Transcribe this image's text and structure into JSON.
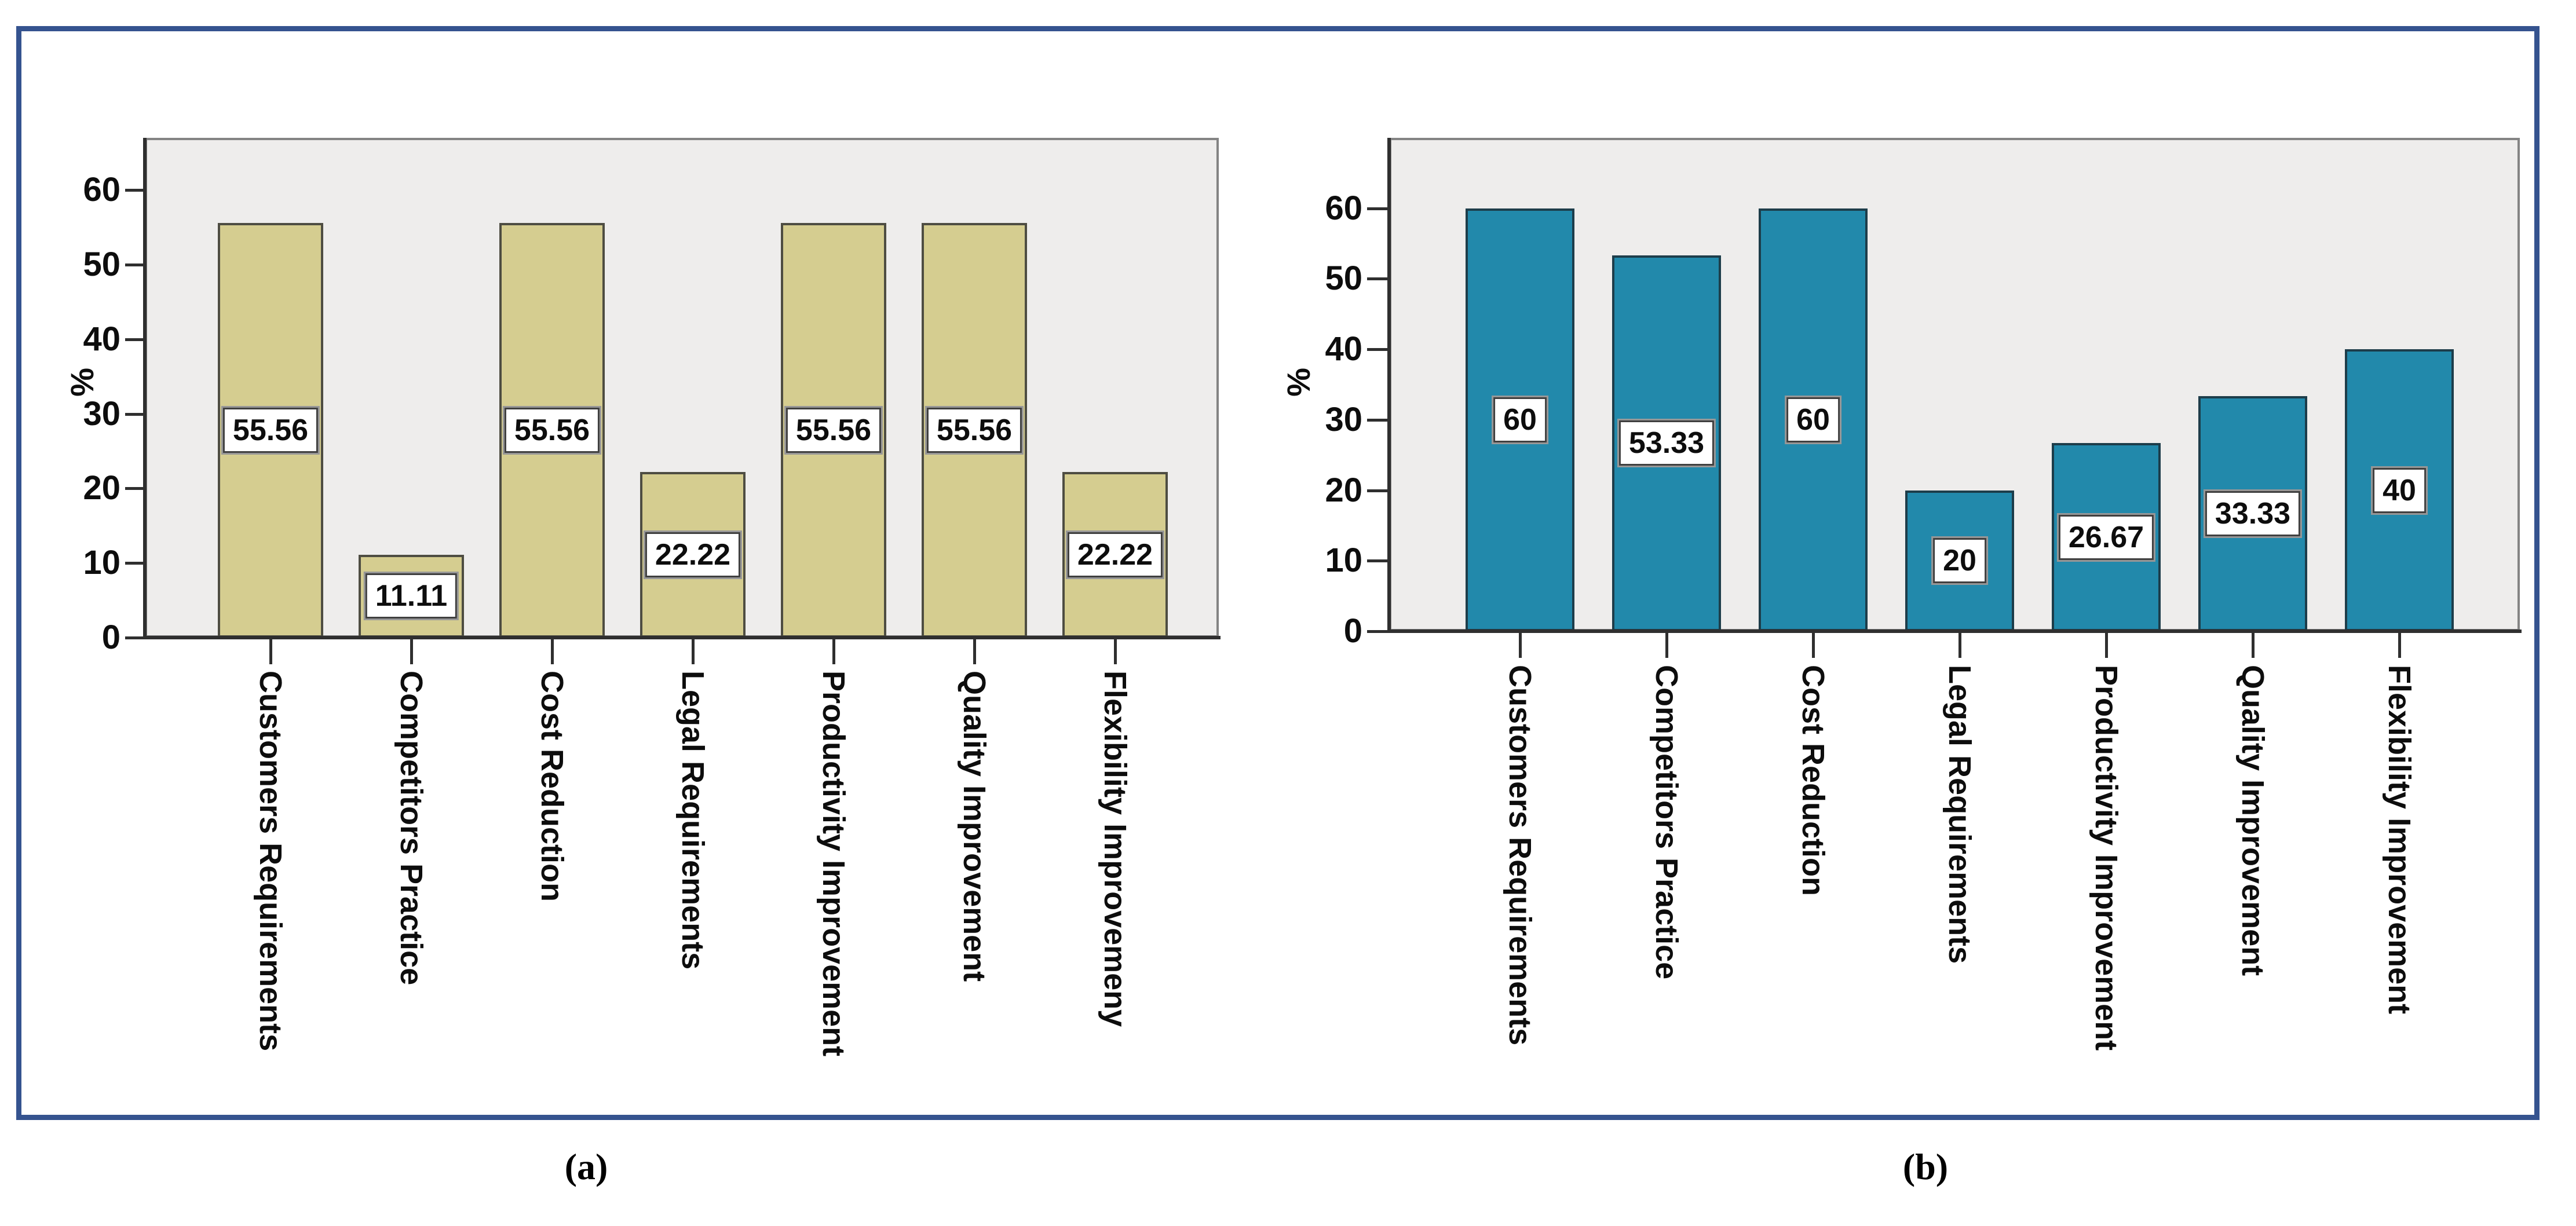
{
  "figure": {
    "captions": {
      "a": "(a)",
      "b": "(b)"
    }
  },
  "colors": {
    "border_blue": "#35538f",
    "plot_bg": "#eeedec",
    "plot_frame": "#848484",
    "axis": "#2f2f2f",
    "chart_a_bar": "#d5cd90",
    "chart_a_bar_border": "#4e4d42",
    "chart_b_bar": "#2289ab",
    "chart_b_bar_border": "#1d3d4a"
  },
  "chart_data": [
    {
      "type": "bar",
      "panel": "a",
      "title": "",
      "xlabel": "",
      "ylabel": "%",
      "categories": [
        "Customers Requirements",
        "Competitors Practice",
        "Cost Reduction",
        "Legal Requirements",
        "Productivity Improvement",
        "Quality Improvement",
        "Flexibility Improvemeny"
      ],
      "values": [
        55.56,
        11.11,
        55.56,
        22.22,
        55.56,
        55.56,
        22.22
      ],
      "bar_labels": [
        "55.56",
        "11.11",
        "55.56",
        "22.22",
        "55.56",
        "55.56",
        "22.22"
      ],
      "yticks": [
        0,
        10,
        20,
        30,
        40,
        50,
        60
      ],
      "ylim": [
        0,
        67
      ],
      "grid": false,
      "legend": null
    },
    {
      "type": "bar",
      "panel": "b",
      "title": "",
      "xlabel": "",
      "ylabel": "%",
      "categories": [
        "Customers Requirements",
        "Competitors Practice",
        "Cost Reduction",
        "Legal Requirements",
        "Productivity Improvement",
        "Quality Improvement",
        "Flexibility Improvement"
      ],
      "values": [
        60,
        53.33,
        60,
        20,
        26.67,
        33.33,
        40
      ],
      "bar_labels": [
        "60",
        "53.33",
        "60",
        "20",
        "26.67",
        "33.33",
        "40"
      ],
      "yticks": [
        0,
        10,
        20,
        30,
        40,
        50,
        60
      ],
      "ylim": [
        0,
        70
      ],
      "grid": false,
      "legend": null
    }
  ]
}
